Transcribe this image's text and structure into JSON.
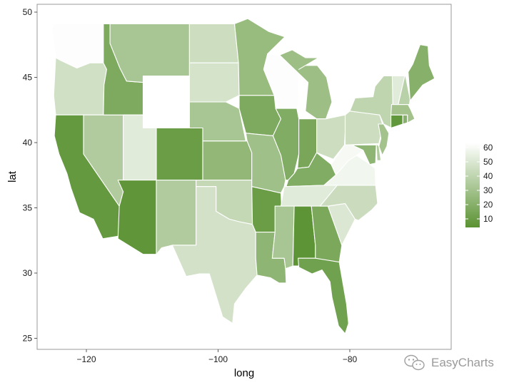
{
  "chart_data": {
    "type": "choropleth",
    "xlabel": "long",
    "ylabel": "lat",
    "xlim": [
      -127,
      -64.5
    ],
    "ylim": [
      24.0,
      50.5
    ],
    "x_ticks": [
      "−120",
      "−100",
      "−80"
    ],
    "x_tick_values": [
      -120,
      -100,
      -80
    ],
    "y_ticks": [
      "25",
      "30",
      "35",
      "40",
      "45",
      "50"
    ],
    "y_tick_values": [
      25,
      30,
      35,
      40,
      45,
      50
    ],
    "grid": false,
    "legend_position": "right",
    "legend": {
      "labels": [
        "60",
        "50",
        "40",
        "30",
        "20",
        "10"
      ],
      "values": [
        60,
        50,
        40,
        30,
        20,
        10
      ],
      "range": [
        4,
        63
      ],
      "low_color": "#5a9232",
      "high_color": "#ffffff"
    },
    "regions": [
      {
        "name": "Washington",
        "value": 62
      },
      {
        "name": "Oregon",
        "value": 46
      },
      {
        "name": "California",
        "value": 8
      },
      {
        "name": "Nevada",
        "value": 35
      },
      {
        "name": "Idaho",
        "value": 17
      },
      {
        "name": "Montana",
        "value": 32
      },
      {
        "name": "Wyoming",
        "value": 63
      },
      {
        "name": "Utah",
        "value": 52
      },
      {
        "name": "Arizona",
        "value": 6
      },
      {
        "name": "Colorado",
        "value": 10
      },
      {
        "name": "New Mexico",
        "value": 35
      },
      {
        "name": "North Dakota",
        "value": 45
      },
      {
        "name": "South Dakota",
        "value": 48
      },
      {
        "name": "Nebraska",
        "value": 32
      },
      {
        "name": "Kansas",
        "value": 24
      },
      {
        "name": "Oklahoma",
        "value": 42
      },
      {
        "name": "Texas",
        "value": 47
      },
      {
        "name": "Minnesota",
        "value": 26
      },
      {
        "name": "Iowa",
        "value": 17
      },
      {
        "name": "Missouri",
        "value": 29
      },
      {
        "name": "Arkansas",
        "value": 10
      },
      {
        "name": "Louisiana",
        "value": 23
      },
      {
        "name": "Wisconsin",
        "value": 62
      },
      {
        "name": "Illinois",
        "value": 18
      },
      {
        "name": "Michigan",
        "value": 28
      },
      {
        "name": "Indiana",
        "value": 15
      },
      {
        "name": "Ohio",
        "value": 45
      },
      {
        "name": "Kentucky",
        "value": 18
      },
      {
        "name": "Tennessee",
        "value": 52
      },
      {
        "name": "Mississippi",
        "value": 32
      },
      {
        "name": "Alabama",
        "value": 5
      },
      {
        "name": "Georgia",
        "value": 16
      },
      {
        "name": "Florida",
        "value": 12
      },
      {
        "name": "South Carolina",
        "value": 50
      },
      {
        "name": "North Carolina",
        "value": 44
      },
      {
        "name": "Virginia",
        "value": 58
      },
      {
        "name": "West Virginia",
        "value": 60
      },
      {
        "name": "Pennsylvania",
        "value": 45
      },
      {
        "name": "New York",
        "value": 40
      },
      {
        "name": "Maryland",
        "value": 23
      },
      {
        "name": "Delaware",
        "value": 35
      },
      {
        "name": "New Jersey",
        "value": 30
      },
      {
        "name": "Connecticut",
        "value": 7
      },
      {
        "name": "Rhode Island",
        "value": 20
      },
      {
        "name": "Massachusetts",
        "value": 30
      },
      {
        "name": "Vermont",
        "value": 52
      },
      {
        "name": "New Hampshire",
        "value": 38
      },
      {
        "name": "Maine",
        "value": 20
      }
    ]
  },
  "watermark": {
    "text": "EasyCharts",
    "icon": "wechat-icon"
  }
}
